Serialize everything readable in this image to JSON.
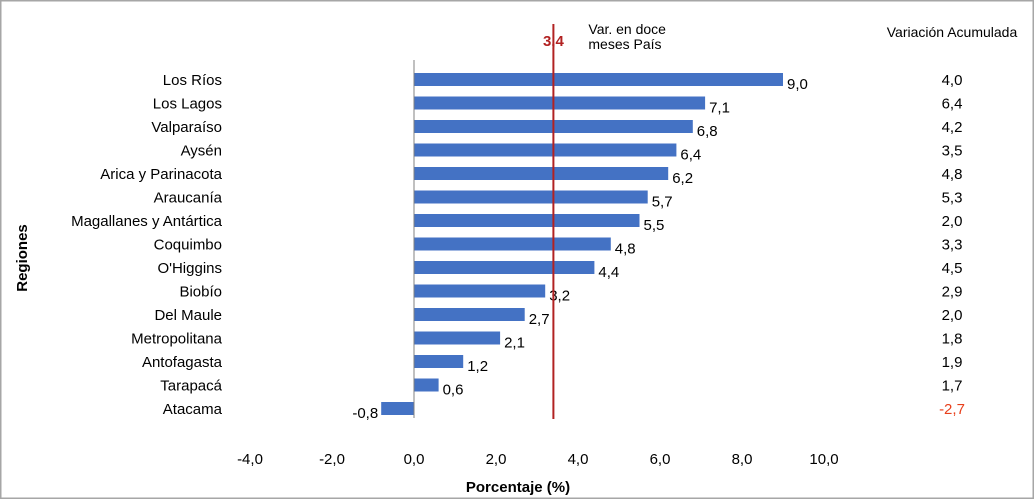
{
  "chart_data": {
    "type": "bar",
    "orientation": "horizontal",
    "xlabel": "Porcentaje (%)",
    "ylabel": "Regiones",
    "xlim": [
      -4.0,
      10.0
    ],
    "xticks": [
      -4.0,
      -2.0,
      0.0,
      2.0,
      4.0,
      6.0,
      8.0,
      10.0
    ],
    "xtick_labels": [
      "-4,0",
      "-2,0",
      "0,0",
      "2,0",
      "4,0",
      "6,0",
      "8,0",
      "10,0"
    ],
    "categories": [
      "Los Ríos",
      "Los Lagos",
      "Valparaíso",
      "Aysén",
      "Arica y Parinacota",
      "Araucanía",
      "Magallanes y Antártica",
      "Coquimbo",
      "O'Higgins",
      "Biobío",
      "Del Maule",
      "Metropolitana",
      "Antofagasta",
      "Tarapacá",
      "Atacama"
    ],
    "values": [
      9.0,
      7.1,
      6.8,
      6.4,
      6.2,
      5.7,
      5.5,
      4.8,
      4.4,
      3.2,
      2.7,
      2.1,
      1.2,
      0.6,
      -0.8
    ],
    "value_labels": [
      "9,0",
      "7,1",
      "6,8",
      "6,4",
      "6,2",
      "5,7",
      "5,5",
      "4,8",
      "4,4",
      "3,2",
      "2,7",
      "2,1",
      "1,2",
      "0,6",
      "-0,8"
    ],
    "reference_line": {
      "value": 3.4,
      "label": "3,4",
      "annotation": [
        "Var. en doce",
        "meses País"
      ],
      "color": "#b22222"
    },
    "cumulative_header": "Variación Acumulada",
    "cumulative_labels": [
      "4,0",
      "6,4",
      "4,2",
      "3,5",
      "4,8",
      "5,3",
      "2,0",
      "3,3",
      "4,5",
      "2,9",
      "2,0",
      "1,8",
      "1,9",
      "1,7",
      "-2,7"
    ],
    "cumulative_values": [
      4.0,
      6.4,
      4.2,
      3.5,
      4.8,
      5.3,
      2.0,
      3.3,
      4.5,
      2.9,
      2.0,
      1.8,
      1.9,
      1.7,
      -2.7
    ],
    "grid": false,
    "colors": {
      "bar": "#4472c4",
      "negative_cumulative": "#e8401c",
      "text": "#000000",
      "axis": "#808080",
      "frame": "#a6a6a6"
    }
  }
}
